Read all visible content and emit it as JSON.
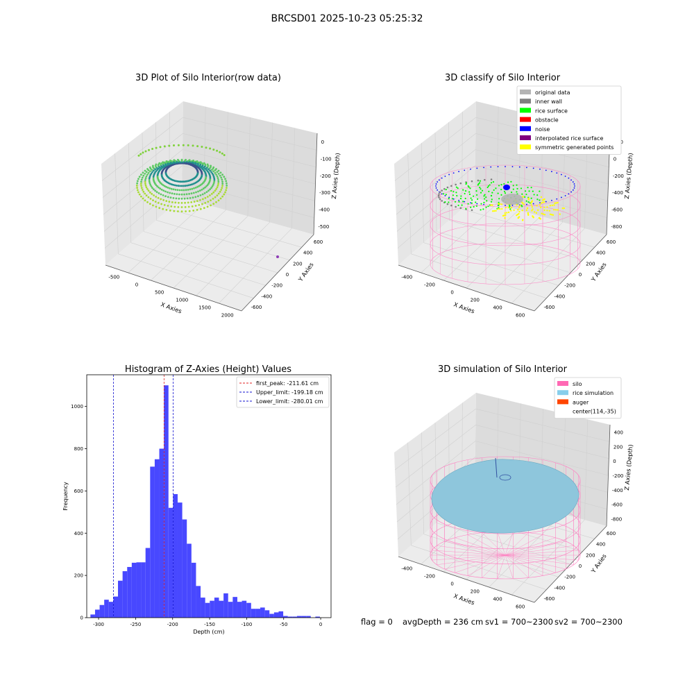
{
  "suptitle": "BRCSD01 2025-10-23 05:25:32",
  "colors": {
    "pane_left": "#e6e6e6",
    "pane_right": "#dcdcdc",
    "pane_floor": "#ececec",
    "grid": "#d0d0d0",
    "hist_bar": "#4848ff",
    "peak_line": "#e02020",
    "limit_line": "#1010d0",
    "silo_wire": "#ff7cc0",
    "rice_fill": "#8ec6dc",
    "auger": "#ff4500"
  },
  "chart_data": [
    {
      "type": "scatter3d",
      "title": "3D Plot of Silo Interior(row data)",
      "xlabel": "X Axies",
      "ylabel": "Y Axies",
      "zlabel": "Z Axies (Depth)",
      "x_ticks": [
        "-500",
        "0",
        "500",
        "1000",
        "1500",
        "2000"
      ],
      "y_ticks": [
        "-600",
        "-400",
        "-200",
        "0",
        "200",
        "400",
        "600"
      ],
      "z_ticks": [
        "-500",
        "-400",
        "-300",
        "-200",
        "-100",
        "0"
      ],
      "xlim": [
        -600,
        2000
      ],
      "ylim": [
        -650,
        650
      ],
      "zlim": [
        -560,
        20
      ],
      "colormap": "viridis",
      "outlier": {
        "x": 2000,
        "y": 300,
        "z": -560
      }
    },
    {
      "type": "scatter3d",
      "title": "3D classify of Silo Interior",
      "xlabel": "X Axies",
      "ylabel": "Y Axies",
      "zlabel": "Z Axies (Depth)",
      "x_ticks": [
        "-400",
        "-200",
        "0",
        "200",
        "400",
        "600"
      ],
      "y_ticks": [
        "-600",
        "-400",
        "-200",
        "0",
        "200",
        "400",
        "600"
      ],
      "z_ticks": [
        "-800",
        "-600",
        "-400",
        "-200",
        "0",
        "200"
      ],
      "legend_position": "upper right",
      "legend": [
        {
          "label": "original data",
          "color": "#b4b4b4"
        },
        {
          "label": "inner wall",
          "color": "#808080"
        },
        {
          "label": "rice surface",
          "color": "#00ff00"
        },
        {
          "label": "obstacle",
          "color": "#ff0000"
        },
        {
          "label": "noise",
          "color": "#0000ff"
        },
        {
          "label": "interpolated rice surface",
          "color": "#800080"
        },
        {
          "label": "symmetric generated points",
          "color": "#ffff00"
        }
      ]
    },
    {
      "type": "bar",
      "title": "Histogram of Z-Axies (Height) Values",
      "xlabel": "Depth (cm)",
      "ylabel": "Frequency",
      "xlim": [
        -316,
        14
      ],
      "ylim": [
        0,
        1150
      ],
      "x_ticks": [
        -300,
        -250,
        -200,
        -150,
        -100,
        -50,
        0
      ],
      "y_ticks": [
        0,
        200,
        400,
        600,
        800,
        1000
      ],
      "bin_start": -311,
      "bin_width": 6.2,
      "values": [
        15,
        38,
        60,
        85,
        75,
        100,
        175,
        220,
        240,
        260,
        262,
        262,
        330,
        715,
        750,
        800,
        1100,
        520,
        585,
        545,
        465,
        350,
        260,
        150,
        95,
        70,
        80,
        95,
        80,
        115,
        75,
        98,
        75,
        80,
        70,
        42,
        42,
        48,
        35,
        18,
        25,
        30,
        8,
        5,
        5,
        8,
        8,
        8,
        0,
        5
      ],
      "lines": [
        {
          "label": "first_peak: -211.61 cm",
          "x": -211.61,
          "color": "#e02020"
        },
        {
          "label": "Upper_limit: -199.18 cm",
          "x": -199.18,
          "color": "#1010d0"
        },
        {
          "label": "Lower_limit: -280.01 cm",
          "x": -280.01,
          "color": "#1010d0"
        }
      ],
      "legend_position": "upper right"
    },
    {
      "type": "surface3d",
      "title": "3D simulation of Silo Interior",
      "xlabel": "X Axies",
      "ylabel": "Y Axies",
      "zlabel": "Z Axies (Depth)",
      "x_ticks": [
        "-400",
        "-200",
        "0",
        "200",
        "400",
        "600"
      ],
      "y_ticks": [
        "-600",
        "-400",
        "-200",
        "0",
        "200",
        "400",
        "600"
      ],
      "z_ticks": [
        "-800",
        "-600",
        "-400",
        "-200",
        "0",
        "200",
        "400"
      ],
      "legend_position": "upper right",
      "legend": [
        {
          "label": "silo",
          "color": "#ff69b4"
        },
        {
          "label": "rice simulation",
          "color": "#87ceeb"
        },
        {
          "label": "auger",
          "color": "#ff4500"
        },
        {
          "label": "center(114,-35)",
          "color": ""
        }
      ]
    }
  ],
  "status": {
    "flag": "flag = 0",
    "avg_depth": "avgDepth = 236 cm",
    "sv1": "sv1 = 700~2300",
    "sv2": "sv2 = 700~2300"
  }
}
